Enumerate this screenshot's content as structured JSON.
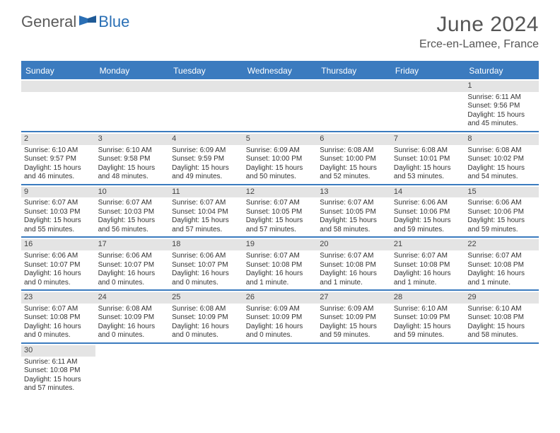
{
  "logo": {
    "word1": "General",
    "word2": "Blue"
  },
  "title": "June 2024",
  "location": "Erce-en-Lamee, France",
  "colors": {
    "header_bar": "#3b7bbf",
    "daynum_bg": "#e4e4e4",
    "text": "#333333",
    "title_text": "#555555",
    "logo_gray": "#5a5a5a",
    "logo_blue": "#2a6fb5",
    "white": "#ffffff"
  },
  "weekdays": [
    "Sunday",
    "Monday",
    "Tuesday",
    "Wednesday",
    "Thursday",
    "Friday",
    "Saturday"
  ],
  "layout": {
    "cols": 7,
    "rows": 6,
    "cell_font_size": 10,
    "day_font_size": 11,
    "weekday_font_size": 12,
    "title_font_size": 30,
    "location_font_size": 16
  },
  "first_day_col": 6,
  "days": [
    {
      "n": 1,
      "sunrise": "6:11 AM",
      "sunset": "9:56 PM",
      "daylight": "15 hours and 45 minutes."
    },
    {
      "n": 2,
      "sunrise": "6:10 AM",
      "sunset": "9:57 PM",
      "daylight": "15 hours and 46 minutes."
    },
    {
      "n": 3,
      "sunrise": "6:10 AM",
      "sunset": "9:58 PM",
      "daylight": "15 hours and 48 minutes."
    },
    {
      "n": 4,
      "sunrise": "6:09 AM",
      "sunset": "9:59 PM",
      "daylight": "15 hours and 49 minutes."
    },
    {
      "n": 5,
      "sunrise": "6:09 AM",
      "sunset": "10:00 PM",
      "daylight": "15 hours and 50 minutes."
    },
    {
      "n": 6,
      "sunrise": "6:08 AM",
      "sunset": "10:00 PM",
      "daylight": "15 hours and 52 minutes."
    },
    {
      "n": 7,
      "sunrise": "6:08 AM",
      "sunset": "10:01 PM",
      "daylight": "15 hours and 53 minutes."
    },
    {
      "n": 8,
      "sunrise": "6:08 AM",
      "sunset": "10:02 PM",
      "daylight": "15 hours and 54 minutes."
    },
    {
      "n": 9,
      "sunrise": "6:07 AM",
      "sunset": "10:03 PM",
      "daylight": "15 hours and 55 minutes."
    },
    {
      "n": 10,
      "sunrise": "6:07 AM",
      "sunset": "10:03 PM",
      "daylight": "15 hours and 56 minutes."
    },
    {
      "n": 11,
      "sunrise": "6:07 AM",
      "sunset": "10:04 PM",
      "daylight": "15 hours and 57 minutes."
    },
    {
      "n": 12,
      "sunrise": "6:07 AM",
      "sunset": "10:05 PM",
      "daylight": "15 hours and 57 minutes."
    },
    {
      "n": 13,
      "sunrise": "6:07 AM",
      "sunset": "10:05 PM",
      "daylight": "15 hours and 58 minutes."
    },
    {
      "n": 14,
      "sunrise": "6:06 AM",
      "sunset": "10:06 PM",
      "daylight": "15 hours and 59 minutes."
    },
    {
      "n": 15,
      "sunrise": "6:06 AM",
      "sunset": "10:06 PM",
      "daylight": "15 hours and 59 minutes."
    },
    {
      "n": 16,
      "sunrise": "6:06 AM",
      "sunset": "10:07 PM",
      "daylight": "16 hours and 0 minutes."
    },
    {
      "n": 17,
      "sunrise": "6:06 AM",
      "sunset": "10:07 PM",
      "daylight": "16 hours and 0 minutes."
    },
    {
      "n": 18,
      "sunrise": "6:06 AM",
      "sunset": "10:07 PM",
      "daylight": "16 hours and 0 minutes."
    },
    {
      "n": 19,
      "sunrise": "6:07 AM",
      "sunset": "10:08 PM",
      "daylight": "16 hours and 1 minute."
    },
    {
      "n": 20,
      "sunrise": "6:07 AM",
      "sunset": "10:08 PM",
      "daylight": "16 hours and 1 minute."
    },
    {
      "n": 21,
      "sunrise": "6:07 AM",
      "sunset": "10:08 PM",
      "daylight": "16 hours and 1 minute."
    },
    {
      "n": 22,
      "sunrise": "6:07 AM",
      "sunset": "10:08 PM",
      "daylight": "16 hours and 1 minute."
    },
    {
      "n": 23,
      "sunrise": "6:07 AM",
      "sunset": "10:08 PM",
      "daylight": "16 hours and 0 minutes."
    },
    {
      "n": 24,
      "sunrise": "6:08 AM",
      "sunset": "10:09 PM",
      "daylight": "16 hours and 0 minutes."
    },
    {
      "n": 25,
      "sunrise": "6:08 AM",
      "sunset": "10:09 PM",
      "daylight": "16 hours and 0 minutes."
    },
    {
      "n": 26,
      "sunrise": "6:09 AM",
      "sunset": "10:09 PM",
      "daylight": "16 hours and 0 minutes."
    },
    {
      "n": 27,
      "sunrise": "6:09 AM",
      "sunset": "10:09 PM",
      "daylight": "15 hours and 59 minutes."
    },
    {
      "n": 28,
      "sunrise": "6:10 AM",
      "sunset": "10:09 PM",
      "daylight": "15 hours and 59 minutes."
    },
    {
      "n": 29,
      "sunrise": "6:10 AM",
      "sunset": "10:08 PM",
      "daylight": "15 hours and 58 minutes."
    },
    {
      "n": 30,
      "sunrise": "6:11 AM",
      "sunset": "10:08 PM",
      "daylight": "15 hours and 57 minutes."
    }
  ],
  "labels": {
    "sunrise": "Sunrise:",
    "sunset": "Sunset:",
    "daylight": "Daylight:"
  }
}
